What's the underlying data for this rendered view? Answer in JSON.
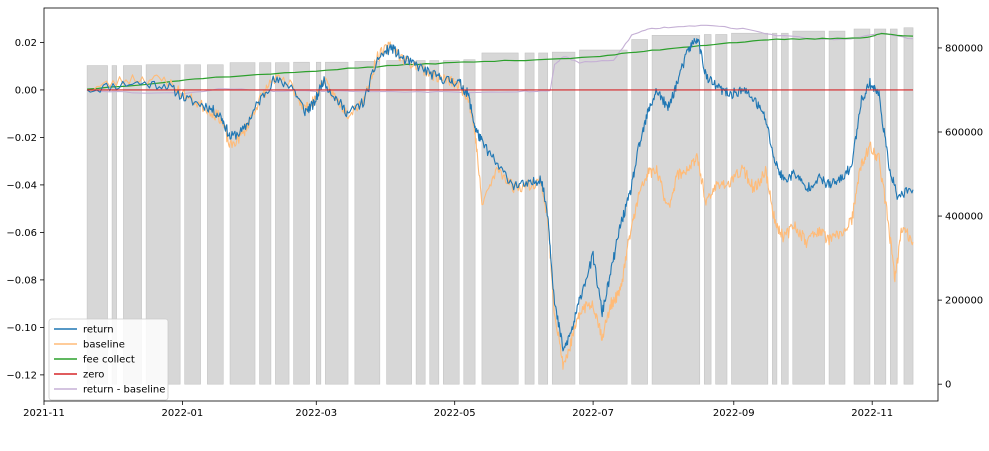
{
  "chart_data": {
    "type": "line",
    "title": "",
    "xlabel": "",
    "ylabel": "",
    "x_ticks": [
      "2021-11",
      "2022-01",
      "2022-03",
      "2022-05",
      "2022-07",
      "2022-09",
      "2022-11"
    ],
    "x_range": [
      "2021-11-01",
      "2022-11-30"
    ],
    "y_left_ticks": [
      0.02,
      0.0,
      -0.02,
      -0.04,
      -0.06,
      -0.08,
      -0.1,
      -0.12
    ],
    "y_left_tick_labels": [
      "0.02",
      "0.00",
      "−0.02",
      "−0.04",
      "−0.06",
      "−0.08",
      "−0.10",
      "−0.12"
    ],
    "y_left_range": [
      -0.131,
      0.0345
    ],
    "y_right_ticks": [
      0,
      200000,
      400000,
      600000,
      800000
    ],
    "y_right_tick_labels": [
      "0",
      "200000",
      "400000",
      "600000",
      "800000"
    ],
    "y_right_range": [
      -40000,
      895000
    ],
    "legend_position": "lower-left",
    "grid": false,
    "series": [
      {
        "name": "return",
        "color": "#1f77b4",
        "axis": "left",
        "points": [
          [
            "2021-11-20",
            0.0
          ],
          [
            "2021-12-10",
            0.003
          ],
          [
            "2021-12-25",
            0.002
          ],
          [
            "2022-01-03",
            -0.004
          ],
          [
            "2022-01-12",
            -0.007
          ],
          [
            "2022-01-18",
            -0.011
          ],
          [
            "2022-01-22",
            -0.02
          ],
          [
            "2022-01-28",
            -0.017
          ],
          [
            "2022-02-03",
            -0.006
          ],
          [
            "2022-02-10",
            0.004
          ],
          [
            "2022-02-18",
            0.002
          ],
          [
            "2022-02-24",
            -0.009
          ],
          [
            "2022-02-28",
            -0.006
          ],
          [
            "2022-03-04",
            0.004
          ],
          [
            "2022-03-10",
            -0.004
          ],
          [
            "2022-03-15",
            -0.01
          ],
          [
            "2022-03-22",
            -0.005
          ],
          [
            "2022-03-28",
            0.013
          ],
          [
            "2022-04-03",
            0.018
          ],
          [
            "2022-04-08",
            0.013
          ],
          [
            "2022-04-15",
            0.01
          ],
          [
            "2022-04-22",
            0.006
          ],
          [
            "2022-04-28",
            0.004
          ],
          [
            "2022-05-03",
            0.003
          ],
          [
            "2022-05-07",
            -0.002
          ],
          [
            "2022-05-10",
            -0.016
          ],
          [
            "2022-05-13",
            -0.022
          ],
          [
            "2022-05-20",
            -0.032
          ],
          [
            "2022-05-27",
            -0.04
          ],
          [
            "2022-06-03",
            -0.04
          ],
          [
            "2022-06-08",
            -0.037
          ],
          [
            "2022-06-11",
            -0.052
          ],
          [
            "2022-06-14",
            -0.09
          ],
          [
            "2022-06-18",
            -0.11
          ],
          [
            "2022-06-22",
            -0.1
          ],
          [
            "2022-06-26",
            -0.085
          ],
          [
            "2022-07-01",
            -0.07
          ],
          [
            "2022-07-05",
            -0.094
          ],
          [
            "2022-07-09",
            -0.076
          ],
          [
            "2022-07-13",
            -0.057
          ],
          [
            "2022-07-17",
            -0.045
          ],
          [
            "2022-07-21",
            -0.025
          ],
          [
            "2022-07-25",
            -0.01
          ],
          [
            "2022-07-29",
            0.0
          ],
          [
            "2022-08-03",
            -0.008
          ],
          [
            "2022-08-07",
            0.003
          ],
          [
            "2022-08-12",
            0.017
          ],
          [
            "2022-08-16",
            0.022
          ],
          [
            "2022-08-20",
            0.005
          ],
          [
            "2022-08-25",
            0.001
          ],
          [
            "2022-08-30",
            -0.002
          ],
          [
            "2022-09-05",
            0.0
          ],
          [
            "2022-09-10",
            -0.004
          ],
          [
            "2022-09-15",
            -0.012
          ],
          [
            "2022-09-19",
            -0.03
          ],
          [
            "2022-09-23",
            -0.038
          ],
          [
            "2022-09-28",
            -0.035
          ],
          [
            "2022-10-03",
            -0.042
          ],
          [
            "2022-10-08",
            -0.037
          ],
          [
            "2022-10-13",
            -0.04
          ],
          [
            "2022-10-18",
            -0.038
          ],
          [
            "2022-10-23",
            -0.032
          ],
          [
            "2022-10-27",
            -0.005
          ],
          [
            "2022-10-31",
            0.003
          ],
          [
            "2022-11-04",
            -0.002
          ],
          [
            "2022-11-08",
            -0.03
          ],
          [
            "2022-11-12",
            -0.045
          ],
          [
            "2022-11-19",
            -0.042
          ]
        ]
      },
      {
        "name": "baseline",
        "color": "#ffbb78",
        "axis": "left",
        "points": [
          [
            "2021-11-20",
            0.0
          ],
          [
            "2021-12-10",
            0.005
          ],
          [
            "2021-12-25",
            0.004
          ],
          [
            "2022-01-03",
            -0.003
          ],
          [
            "2022-01-12",
            -0.008
          ],
          [
            "2022-01-18",
            -0.012
          ],
          [
            "2022-01-22",
            -0.024
          ],
          [
            "2022-01-28",
            -0.018
          ],
          [
            "2022-02-03",
            -0.006
          ],
          [
            "2022-02-10",
            0.005
          ],
          [
            "2022-02-18",
            0.002
          ],
          [
            "2022-02-24",
            -0.008
          ],
          [
            "2022-02-28",
            -0.005
          ],
          [
            "2022-03-04",
            0.004
          ],
          [
            "2022-03-10",
            -0.004
          ],
          [
            "2022-03-15",
            -0.01
          ],
          [
            "2022-03-22",
            -0.004
          ],
          [
            "2022-03-28",
            0.014
          ],
          [
            "2022-04-03",
            0.019
          ],
          [
            "2022-04-08",
            0.013
          ],
          [
            "2022-04-15",
            0.01
          ],
          [
            "2022-04-22",
            0.006
          ],
          [
            "2022-04-28",
            0.004
          ],
          [
            "2022-05-03",
            0.002
          ],
          [
            "2022-05-07",
            -0.003
          ],
          [
            "2022-05-10",
            -0.018
          ],
          [
            "2022-05-13",
            -0.048
          ],
          [
            "2022-05-20",
            -0.033
          ],
          [
            "2022-05-27",
            -0.041
          ],
          [
            "2022-06-03",
            -0.04
          ],
          [
            "2022-06-08",
            -0.038
          ],
          [
            "2022-06-11",
            -0.055
          ],
          [
            "2022-06-14",
            -0.094
          ],
          [
            "2022-06-18",
            -0.117
          ],
          [
            "2022-06-22",
            -0.104
          ],
          [
            "2022-06-26",
            -0.092
          ],
          [
            "2022-07-01",
            -0.09
          ],
          [
            "2022-07-05",
            -0.104
          ],
          [
            "2022-07-09",
            -0.09
          ],
          [
            "2022-07-13",
            -0.085
          ],
          [
            "2022-07-17",
            -0.062
          ],
          [
            "2022-07-21",
            -0.045
          ],
          [
            "2022-07-25",
            -0.035
          ],
          [
            "2022-07-29",
            -0.034
          ],
          [
            "2022-08-03",
            -0.05
          ],
          [
            "2022-08-07",
            -0.036
          ],
          [
            "2022-08-12",
            -0.033
          ],
          [
            "2022-08-16",
            -0.029
          ],
          [
            "2022-08-20",
            -0.048
          ],
          [
            "2022-08-25",
            -0.039
          ],
          [
            "2022-08-30",
            -0.04
          ],
          [
            "2022-09-05",
            -0.033
          ],
          [
            "2022-09-10",
            -0.042
          ],
          [
            "2022-09-15",
            -0.034
          ],
          [
            "2022-09-19",
            -0.055
          ],
          [
            "2022-09-23",
            -0.062
          ],
          [
            "2022-09-28",
            -0.057
          ],
          [
            "2022-10-03",
            -0.064
          ],
          [
            "2022-10-08",
            -0.059
          ],
          [
            "2022-10-13",
            -0.063
          ],
          [
            "2022-10-18",
            -0.061
          ],
          [
            "2022-10-23",
            -0.055
          ],
          [
            "2022-10-27",
            -0.032
          ],
          [
            "2022-10-31",
            -0.024
          ],
          [
            "2022-11-04",
            -0.029
          ],
          [
            "2022-11-08",
            -0.055
          ],
          [
            "2022-11-11",
            -0.08
          ],
          [
            "2022-11-14",
            -0.058
          ],
          [
            "2022-11-19",
            -0.064
          ]
        ]
      },
      {
        "name": "fee collect",
        "color": "#2ca02c",
        "axis": "right",
        "points": [
          [
            "2021-11-20",
            702000
          ],
          [
            "2021-12-20",
            716000
          ],
          [
            "2022-01-10",
            728000
          ],
          [
            "2022-02-15",
            740000
          ],
          [
            "2022-03-15",
            751000
          ],
          [
            "2022-04-10",
            760000
          ],
          [
            "2022-05-05",
            766000
          ],
          [
            "2022-06-01",
            771000
          ],
          [
            "2022-07-01",
            778000
          ],
          [
            "2022-07-20",
            790000
          ],
          [
            "2022-08-10",
            802000
          ],
          [
            "2022-08-30",
            812000
          ],
          [
            "2022-09-20",
            820000
          ],
          [
            "2022-10-10",
            822000
          ],
          [
            "2022-10-30",
            825000
          ],
          [
            "2022-11-05",
            834000
          ],
          [
            "2022-11-19",
            828000
          ]
        ]
      },
      {
        "name": "zero",
        "color": "#d62728",
        "axis": "left",
        "points": [
          [
            "2021-11-20",
            0.0
          ],
          [
            "2022-11-19",
            0.0
          ]
        ]
      },
      {
        "name": "return - baseline",
        "color": "#c5b0d5",
        "axis": "right",
        "points": [
          [
            "2021-11-20",
            700000
          ],
          [
            "2021-12-10",
            694000
          ],
          [
            "2022-01-01",
            692000
          ],
          [
            "2022-01-20",
            704000
          ],
          [
            "2022-02-10",
            698000
          ],
          [
            "2022-03-10",
            697000
          ],
          [
            "2022-04-15",
            696000
          ],
          [
            "2022-05-10",
            695000
          ],
          [
            "2022-06-01",
            697000
          ],
          [
            "2022-06-12",
            697000
          ],
          [
            "2022-06-14",
            760000
          ],
          [
            "2022-06-18",
            780000
          ],
          [
            "2022-06-25",
            765000
          ],
          [
            "2022-07-10",
            770000
          ],
          [
            "2022-07-18",
            830000
          ],
          [
            "2022-07-25",
            845000
          ],
          [
            "2022-08-05",
            850000
          ],
          [
            "2022-08-20",
            855000
          ],
          [
            "2022-09-05",
            845000
          ],
          [
            "2022-09-20",
            830000
          ],
          [
            "2022-10-10",
            820000
          ],
          [
            "2022-10-25",
            823000
          ],
          [
            "2022-11-05",
            835000
          ],
          [
            "2022-11-19",
            822000
          ]
        ]
      }
    ],
    "bars": {
      "name": "return - baseline",
      "color": "#c8c8c8",
      "axis": "right",
      "items": [
        [
          "2021-11-20",
          "2021-11-29",
          758000
        ],
        [
          "2021-12-01",
          "2021-12-03",
          758000
        ],
        [
          "2021-12-06",
          "2021-12-14",
          758000
        ],
        [
          "2021-12-16",
          "2021-12-31",
          760000
        ],
        [
          "2022-01-02",
          "2022-01-09",
          760000
        ],
        [
          "2022-01-12",
          "2022-01-19",
          760000
        ],
        [
          "2022-01-22",
          "2022-02-02",
          765000
        ],
        [
          "2022-02-04",
          "2022-02-09",
          765000
        ],
        [
          "2022-02-11",
          "2022-02-17",
          765000
        ],
        [
          "2022-02-19",
          "2022-02-26",
          766000
        ],
        [
          "2022-03-01",
          "2022-03-03",
          766000
        ],
        [
          "2022-03-05",
          "2022-03-15",
          766000
        ],
        [
          "2022-03-18",
          "2022-03-29",
          768000
        ],
        [
          "2022-04-01",
          "2022-04-12",
          770000
        ],
        [
          "2022-04-14",
          "2022-04-18",
          770000
        ],
        [
          "2022-04-20",
          "2022-04-24",
          770000
        ],
        [
          "2022-04-26",
          "2022-05-03",
          770000
        ],
        [
          "2022-05-05",
          "2022-05-10",
          772000
        ],
        [
          "2022-05-13",
          "2022-05-29",
          788000
        ],
        [
          "2022-06-01",
          "2022-06-05",
          788000
        ],
        [
          "2022-06-07",
          "2022-06-11",
          788000
        ],
        [
          "2022-06-13",
          "2022-06-23",
          790000
        ],
        [
          "2022-06-25",
          "2022-07-16",
          795000
        ],
        [
          "2022-07-18",
          "2022-07-25",
          820000
        ],
        [
          "2022-07-27",
          "2022-08-17",
          830000
        ],
        [
          "2022-08-19",
          "2022-08-22",
          832000
        ],
        [
          "2022-08-24",
          "2022-08-29",
          832000
        ],
        [
          "2022-08-31",
          "2022-09-16",
          835000
        ],
        [
          "2022-09-18",
          "2022-09-20",
          835000
        ],
        [
          "2022-09-22",
          "2022-09-25",
          835000
        ],
        [
          "2022-09-27",
          "2022-10-11",
          840000
        ],
        [
          "2022-10-13",
          "2022-10-20",
          840000
        ],
        [
          "2022-10-24",
          "2022-10-31",
          845000
        ],
        [
          "2022-11-02",
          "2022-11-07",
          845000
        ],
        [
          "2022-11-09",
          "2022-11-12",
          845000
        ],
        [
          "2022-11-15",
          "2022-11-19",
          848000
        ]
      ]
    }
  }
}
